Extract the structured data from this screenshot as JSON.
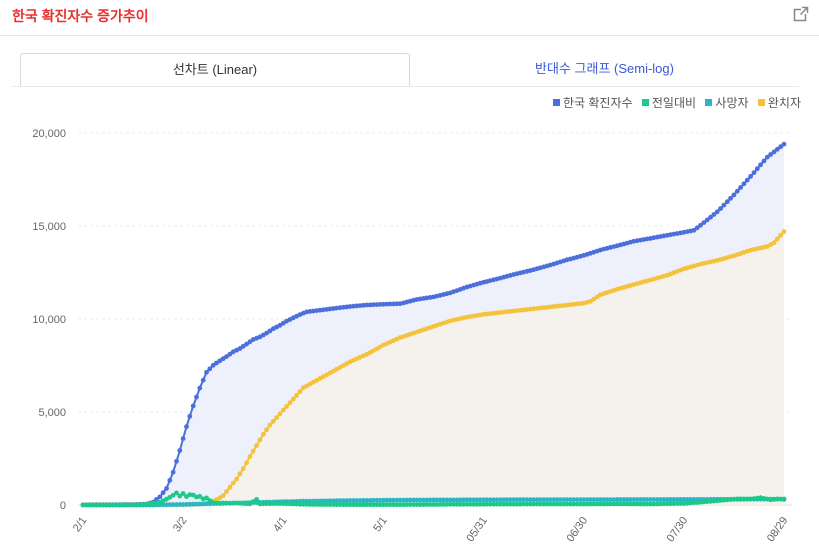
{
  "header": {
    "title": "한국 확진자수 증가추이",
    "external_link_icon": "external-link-icon"
  },
  "tabs": [
    {
      "label": "선차트 (Linear)",
      "active": true
    },
    {
      "label": "반대수 그래프 (Semi-log)",
      "active": false
    }
  ],
  "colors": {
    "title": "#e8312f",
    "tab_inactive_text": "#3a58d6"
  },
  "chart_data": {
    "type": "line",
    "x_ticks": [
      "2/1",
      "3/2",
      "4/1",
      "5/1",
      "05/31",
      "06/30",
      "07/30",
      "08/29"
    ],
    "x_range_days": [
      0,
      210
    ],
    "y_ticks": [
      "0",
      "5,000",
      "10,000",
      "15,000",
      "20,000"
    ],
    "ylim": [
      0,
      20000
    ],
    "grid": true,
    "legend_position": "top-right",
    "series": [
      {
        "name": "한국 확진자수",
        "color": "#4c6fdb",
        "area_fill": "#eef0fb",
        "points": [
          [
            0,
            12
          ],
          [
            15,
            28
          ],
          [
            19,
            51
          ],
          [
            21,
            156
          ],
          [
            23,
            433
          ],
          [
            25,
            893
          ],
          [
            27,
            1766
          ],
          [
            29,
            2931
          ],
          [
            31,
            4212
          ],
          [
            33,
            5328
          ],
          [
            35,
            6284
          ],
          [
            37,
            7134
          ],
          [
            39,
            7513
          ],
          [
            41,
            7755
          ],
          [
            43,
            7979
          ],
          [
            45,
            8236
          ],
          [
            47,
            8413
          ],
          [
            49,
            8652
          ],
          [
            51,
            8897
          ],
          [
            53,
            9037
          ],
          [
            55,
            9241
          ],
          [
            57,
            9478
          ],
          [
            59,
            9661
          ],
          [
            61,
            9887
          ],
          [
            63,
            10062
          ],
          [
            65,
            10237
          ],
          [
            67,
            10384
          ],
          [
            70,
            10450
          ],
          [
            75,
            10564
          ],
          [
            80,
            10674
          ],
          [
            85,
            10752
          ],
          [
            90,
            10793
          ],
          [
            95,
            10822
          ],
          [
            100,
            11050
          ],
          [
            105,
            11190
          ],
          [
            110,
            11402
          ],
          [
            115,
            11719
          ],
          [
            120,
            11974
          ],
          [
            125,
            12198
          ],
          [
            130,
            12438
          ],
          [
            135,
            12653
          ],
          [
            140,
            12904
          ],
          [
            145,
            13181
          ],
          [
            150,
            13417
          ],
          [
            155,
            13711
          ],
          [
            160,
            13938
          ],
          [
            165,
            14175
          ],
          [
            170,
            14336
          ],
          [
            175,
            14499
          ],
          [
            180,
            14660
          ],
          [
            183,
            14770
          ],
          [
            185,
            15039
          ],
          [
            190,
            15761
          ],
          [
            195,
            16670
          ],
          [
            200,
            17665
          ],
          [
            205,
            18706
          ],
          [
            210,
            19400
          ]
        ]
      },
      {
        "name": "전일대비",
        "color": "#1cc88a",
        "points": [
          [
            0,
            0
          ],
          [
            15,
            5
          ],
          [
            18,
            20
          ],
          [
            21,
            100
          ],
          [
            23,
            140
          ],
          [
            25,
            310
          ],
          [
            27,
            520
          ],
          [
            28,
            650
          ],
          [
            29,
            480
          ],
          [
            30,
            620
          ],
          [
            31,
            450
          ],
          [
            32,
            560
          ],
          [
            33,
            540
          ],
          [
            34,
            430
          ],
          [
            35,
            460
          ],
          [
            36,
            330
          ],
          [
            37,
            380
          ],
          [
            38,
            240
          ],
          [
            39,
            130
          ],
          [
            40,
            110
          ],
          [
            42,
            110
          ],
          [
            44,
            90
          ],
          [
            46,
            100
          ],
          [
            48,
            80
          ],
          [
            50,
            60
          ],
          [
            52,
            300
          ],
          [
            53,
            60
          ],
          [
            58,
            80
          ],
          [
            65,
            40
          ],
          [
            75,
            20
          ],
          [
            85,
            15
          ],
          [
            100,
            20
          ],
          [
            110,
            35
          ],
          [
            120,
            40
          ],
          [
            130,
            45
          ],
          [
            140,
            50
          ],
          [
            150,
            50
          ],
          [
            160,
            60
          ],
          [
            170,
            50
          ],
          [
            180,
            80
          ],
          [
            185,
            150
          ],
          [
            188,
            200
          ],
          [
            192,
            260
          ],
          [
            196,
            330
          ],
          [
            200,
            320
          ],
          [
            203,
            390
          ],
          [
            206,
            280
          ],
          [
            208,
            320
          ],
          [
            210,
            300
          ]
        ]
      },
      {
        "name": "사망자",
        "color": "#2ab6c8",
        "points": [
          [
            0,
            0
          ],
          [
            21,
            0
          ],
          [
            28,
            20
          ],
          [
            35,
            50
          ],
          [
            45,
            100
          ],
          [
            55,
            150
          ],
          [
            65,
            200
          ],
          [
            80,
            240
          ],
          [
            100,
            270
          ],
          [
            120,
            280
          ],
          [
            150,
            290
          ],
          [
            180,
            300
          ],
          [
            200,
            310
          ],
          [
            210,
            320
          ]
        ]
      },
      {
        "name": "완치자",
        "color": "#f4c23b",
        "area_fill": "#f5f2ed",
        "points": [
          [
            0,
            0
          ],
          [
            30,
            20
          ],
          [
            35,
            40
          ],
          [
            38,
            120
          ],
          [
            40,
            290
          ],
          [
            42,
            500
          ],
          [
            44,
            950
          ],
          [
            46,
            1400
          ],
          [
            48,
            1950
          ],
          [
            50,
            2600
          ],
          [
            52,
            3200
          ],
          [
            54,
            3800
          ],
          [
            56,
            4300
          ],
          [
            58,
            4700
          ],
          [
            60,
            5100
          ],
          [
            62,
            5500
          ],
          [
            64,
            5900
          ],
          [
            66,
            6300
          ],
          [
            68,
            6500
          ],
          [
            70,
            6700
          ],
          [
            75,
            7200
          ],
          [
            80,
            7700
          ],
          [
            85,
            8100
          ],
          [
            90,
            8600
          ],
          [
            95,
            9000
          ],
          [
            100,
            9300
          ],
          [
            105,
            9600
          ],
          [
            110,
            9900
          ],
          [
            115,
            10100
          ],
          [
            120,
            10250
          ],
          [
            125,
            10350
          ],
          [
            130,
            10450
          ],
          [
            135,
            10550
          ],
          [
            140,
            10650
          ],
          [
            145,
            10750
          ],
          [
            150,
            10850
          ],
          [
            152,
            10950
          ],
          [
            155,
            11300
          ],
          [
            160,
            11600
          ],
          [
            165,
            11850
          ],
          [
            170,
            12100
          ],
          [
            175,
            12350
          ],
          [
            180,
            12700
          ],
          [
            185,
            12950
          ],
          [
            190,
            13150
          ],
          [
            195,
            13400
          ],
          [
            200,
            13700
          ],
          [
            205,
            13900
          ],
          [
            207,
            14100
          ],
          [
            210,
            14700
          ]
        ]
      }
    ]
  }
}
